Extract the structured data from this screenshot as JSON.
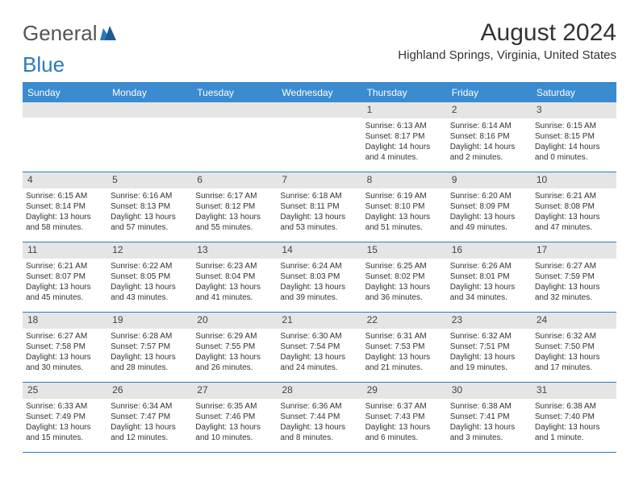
{
  "logo": {
    "text1": "General",
    "text2": "Blue"
  },
  "title": "August 2024",
  "location": "Highland Springs, Virginia, United States",
  "colors": {
    "header_bg": "#3a8bd0",
    "header_border": "#2a7ac0",
    "daynum_bg": "#e5e5e5",
    "text": "#333333",
    "logo_gray": "#555555",
    "logo_blue": "#2a7ac0"
  },
  "weekdays": [
    "Sunday",
    "Monday",
    "Tuesday",
    "Wednesday",
    "Thursday",
    "Friday",
    "Saturday"
  ],
  "weeks": [
    [
      {
        "day": null
      },
      {
        "day": null
      },
      {
        "day": null
      },
      {
        "day": null
      },
      {
        "day": "1",
        "sunrise": "Sunrise: 6:13 AM",
        "sunset": "Sunset: 8:17 PM",
        "daylight": "Daylight: 14 hours and 4 minutes."
      },
      {
        "day": "2",
        "sunrise": "Sunrise: 6:14 AM",
        "sunset": "Sunset: 8:16 PM",
        "daylight": "Daylight: 14 hours and 2 minutes."
      },
      {
        "day": "3",
        "sunrise": "Sunrise: 6:15 AM",
        "sunset": "Sunset: 8:15 PM",
        "daylight": "Daylight: 14 hours and 0 minutes."
      }
    ],
    [
      {
        "day": "4",
        "sunrise": "Sunrise: 6:15 AM",
        "sunset": "Sunset: 8:14 PM",
        "daylight": "Daylight: 13 hours and 58 minutes."
      },
      {
        "day": "5",
        "sunrise": "Sunrise: 6:16 AM",
        "sunset": "Sunset: 8:13 PM",
        "daylight": "Daylight: 13 hours and 57 minutes."
      },
      {
        "day": "6",
        "sunrise": "Sunrise: 6:17 AM",
        "sunset": "Sunset: 8:12 PM",
        "daylight": "Daylight: 13 hours and 55 minutes."
      },
      {
        "day": "7",
        "sunrise": "Sunrise: 6:18 AM",
        "sunset": "Sunset: 8:11 PM",
        "daylight": "Daylight: 13 hours and 53 minutes."
      },
      {
        "day": "8",
        "sunrise": "Sunrise: 6:19 AM",
        "sunset": "Sunset: 8:10 PM",
        "daylight": "Daylight: 13 hours and 51 minutes."
      },
      {
        "day": "9",
        "sunrise": "Sunrise: 6:20 AM",
        "sunset": "Sunset: 8:09 PM",
        "daylight": "Daylight: 13 hours and 49 minutes."
      },
      {
        "day": "10",
        "sunrise": "Sunrise: 6:21 AM",
        "sunset": "Sunset: 8:08 PM",
        "daylight": "Daylight: 13 hours and 47 minutes."
      }
    ],
    [
      {
        "day": "11",
        "sunrise": "Sunrise: 6:21 AM",
        "sunset": "Sunset: 8:07 PM",
        "daylight": "Daylight: 13 hours and 45 minutes."
      },
      {
        "day": "12",
        "sunrise": "Sunrise: 6:22 AM",
        "sunset": "Sunset: 8:05 PM",
        "daylight": "Daylight: 13 hours and 43 minutes."
      },
      {
        "day": "13",
        "sunrise": "Sunrise: 6:23 AM",
        "sunset": "Sunset: 8:04 PM",
        "daylight": "Daylight: 13 hours and 41 minutes."
      },
      {
        "day": "14",
        "sunrise": "Sunrise: 6:24 AM",
        "sunset": "Sunset: 8:03 PM",
        "daylight": "Daylight: 13 hours and 39 minutes."
      },
      {
        "day": "15",
        "sunrise": "Sunrise: 6:25 AM",
        "sunset": "Sunset: 8:02 PM",
        "daylight": "Daylight: 13 hours and 36 minutes."
      },
      {
        "day": "16",
        "sunrise": "Sunrise: 6:26 AM",
        "sunset": "Sunset: 8:01 PM",
        "daylight": "Daylight: 13 hours and 34 minutes."
      },
      {
        "day": "17",
        "sunrise": "Sunrise: 6:27 AM",
        "sunset": "Sunset: 7:59 PM",
        "daylight": "Daylight: 13 hours and 32 minutes."
      }
    ],
    [
      {
        "day": "18",
        "sunrise": "Sunrise: 6:27 AM",
        "sunset": "Sunset: 7:58 PM",
        "daylight": "Daylight: 13 hours and 30 minutes."
      },
      {
        "day": "19",
        "sunrise": "Sunrise: 6:28 AM",
        "sunset": "Sunset: 7:57 PM",
        "daylight": "Daylight: 13 hours and 28 minutes."
      },
      {
        "day": "20",
        "sunrise": "Sunrise: 6:29 AM",
        "sunset": "Sunset: 7:55 PM",
        "daylight": "Daylight: 13 hours and 26 minutes."
      },
      {
        "day": "21",
        "sunrise": "Sunrise: 6:30 AM",
        "sunset": "Sunset: 7:54 PM",
        "daylight": "Daylight: 13 hours and 24 minutes."
      },
      {
        "day": "22",
        "sunrise": "Sunrise: 6:31 AM",
        "sunset": "Sunset: 7:53 PM",
        "daylight": "Daylight: 13 hours and 21 minutes."
      },
      {
        "day": "23",
        "sunrise": "Sunrise: 6:32 AM",
        "sunset": "Sunset: 7:51 PM",
        "daylight": "Daylight: 13 hours and 19 minutes."
      },
      {
        "day": "24",
        "sunrise": "Sunrise: 6:32 AM",
        "sunset": "Sunset: 7:50 PM",
        "daylight": "Daylight: 13 hours and 17 minutes."
      }
    ],
    [
      {
        "day": "25",
        "sunrise": "Sunrise: 6:33 AM",
        "sunset": "Sunset: 7:49 PM",
        "daylight": "Daylight: 13 hours and 15 minutes."
      },
      {
        "day": "26",
        "sunrise": "Sunrise: 6:34 AM",
        "sunset": "Sunset: 7:47 PM",
        "daylight": "Daylight: 13 hours and 12 minutes."
      },
      {
        "day": "27",
        "sunrise": "Sunrise: 6:35 AM",
        "sunset": "Sunset: 7:46 PM",
        "daylight": "Daylight: 13 hours and 10 minutes."
      },
      {
        "day": "28",
        "sunrise": "Sunrise: 6:36 AM",
        "sunset": "Sunset: 7:44 PM",
        "daylight": "Daylight: 13 hours and 8 minutes."
      },
      {
        "day": "29",
        "sunrise": "Sunrise: 6:37 AM",
        "sunset": "Sunset: 7:43 PM",
        "daylight": "Daylight: 13 hours and 6 minutes."
      },
      {
        "day": "30",
        "sunrise": "Sunrise: 6:38 AM",
        "sunset": "Sunset: 7:41 PM",
        "daylight": "Daylight: 13 hours and 3 minutes."
      },
      {
        "day": "31",
        "sunrise": "Sunrise: 6:38 AM",
        "sunset": "Sunset: 7:40 PM",
        "daylight": "Daylight: 13 hours and 1 minute."
      }
    ]
  ]
}
